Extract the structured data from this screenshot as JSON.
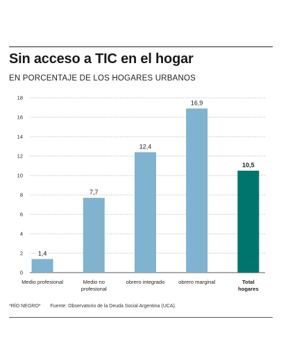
{
  "title": "Sin acceso a TIC en el hogar",
  "subtitle": "EN PORCENTAJE DE LOS HOGARES URBANOS",
  "footer": {
    "note": "*RÍO NEGRO*",
    "source": "Fuente: Observatorio de la Deuda Social Argentina (UCA)."
  },
  "colors": {
    "bar": "#7fb3d0",
    "highlight": "#00756e"
  },
  "chart_data": {
    "type": "bar",
    "title": "Sin acceso a TIC en el hogar",
    "subtitle": "EN PORCENTAJE DE LOS HOGARES URBANOS",
    "categories": [
      "Medio profesional",
      "Medio no profesional",
      "obrero integrado",
      "obrero marginal",
      "Total hogares"
    ],
    "category_lines": [
      [
        "Medio profesional"
      ],
      [
        "Medio no",
        "profesional"
      ],
      [
        "obrero integrado"
      ],
      [
        "obrero marginal"
      ],
      [
        "Total",
        "hogares"
      ]
    ],
    "values": [
      1.4,
      7.7,
      12.4,
      16.9,
      10.5
    ],
    "value_labels": [
      "1,4",
      "7,7",
      "12,4",
      "16,9",
      "10,5"
    ],
    "highlight_index": 4,
    "yticks": [
      0,
      2,
      4,
      6,
      8,
      10,
      12,
      14,
      16,
      18
    ],
    "ylim": [
      0,
      18
    ],
    "grid": true,
    "xlabel": "",
    "ylabel": ""
  }
}
